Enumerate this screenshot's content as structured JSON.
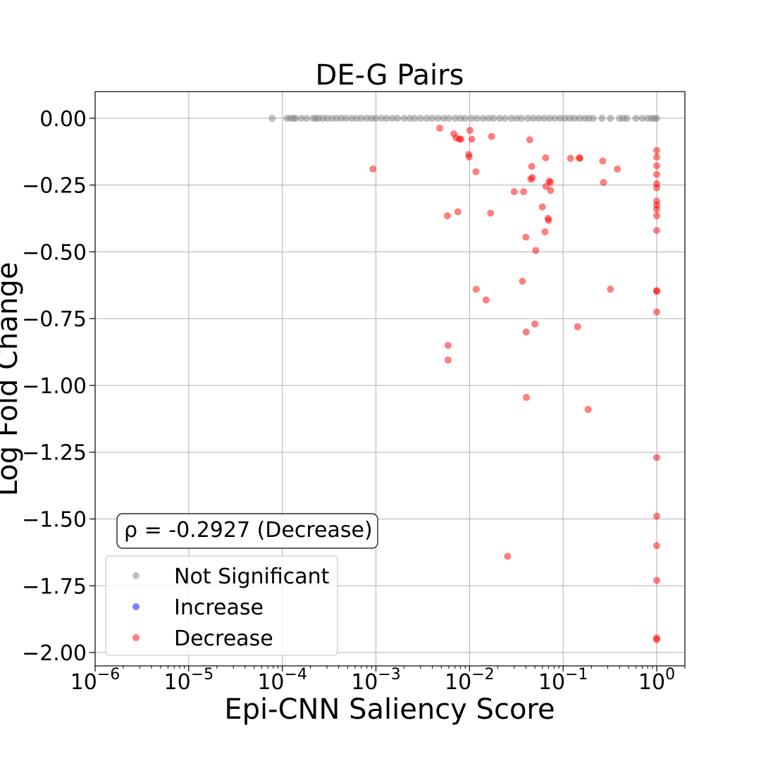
{
  "chart_data": {
    "type": "scatter",
    "title": "DE-G Pairs",
    "xlabel": "Epi-CNN Saliency Score",
    "ylabel": "Log Fold Change",
    "xscale": "log",
    "xlim": [
      1e-06,
      2
    ],
    "ylim": [
      -2.05,
      0.1
    ],
    "grid": true,
    "legend_position": "lower-left",
    "xticks": [
      {
        "value": 1e-06,
        "base": "10",
        "exp": "−6"
      },
      {
        "value": 1e-05,
        "base": "10",
        "exp": "−5"
      },
      {
        "value": 0.0001,
        "base": "10",
        "exp": "−4"
      },
      {
        "value": 0.001,
        "base": "10",
        "exp": "−3"
      },
      {
        "value": 0.01,
        "base": "10",
        "exp": "−2"
      },
      {
        "value": 0.1,
        "base": "10",
        "exp": "−1"
      },
      {
        "value": 1,
        "base": "10",
        "exp": "0"
      }
    ],
    "yticks": [
      {
        "value": 0,
        "label": "0.00"
      },
      {
        "value": -0.25,
        "label": "−0.25"
      },
      {
        "value": -0.5,
        "label": "−0.50"
      },
      {
        "value": -0.75,
        "label": "−0.75"
      },
      {
        "value": -1.0,
        "label": "−1.00"
      },
      {
        "value": -1.25,
        "label": "−1.25"
      },
      {
        "value": -1.5,
        "label": "−1.50"
      },
      {
        "value": -1.75,
        "label": "−1.75"
      },
      {
        "value": -2.0,
        "label": "−2.00"
      }
    ],
    "annotation": "ρ = -0.2927 (Decrease)",
    "series": [
      {
        "name": "Not Significant",
        "color": "#808080",
        "points": [
          [
            7.8e-05,
            0
          ],
          [
            0.000112,
            0
          ],
          [
            0.000122,
            0
          ],
          [
            0.000132,
            0
          ],
          [
            0.000138,
            0
          ],
          [
            0.00016,
            0
          ],
          [
            0.000182,
            0
          ],
          [
            0.000214,
            0
          ],
          [
            0.000228,
            0
          ],
          [
            0.000245,
            0
          ],
          [
            0.00027,
            0
          ],
          [
            0.0003,
            0
          ],
          [
            0.00034,
            0
          ],
          [
            0.00038,
            0
          ],
          [
            0.00043,
            0
          ],
          [
            0.00048,
            0
          ],
          [
            0.00055,
            0
          ],
          [
            0.00062,
            0
          ],
          [
            0.0007,
            0
          ],
          [
            0.0008,
            0
          ],
          [
            0.0009,
            0
          ],
          [
            0.001,
            0
          ],
          [
            0.00115,
            0
          ],
          [
            0.0013,
            0
          ],
          [
            0.0015,
            0
          ],
          [
            0.0017,
            0
          ],
          [
            0.002,
            0
          ],
          [
            0.0023,
            0
          ],
          [
            0.0026,
            0
          ],
          [
            0.003,
            0
          ],
          [
            0.0035,
            0
          ],
          [
            0.004,
            0
          ],
          [
            0.0046,
            0
          ],
          [
            0.0053,
            0
          ],
          [
            0.006,
            0
          ],
          [
            0.007,
            0
          ],
          [
            0.008,
            0
          ],
          [
            0.009,
            0
          ],
          [
            0.0105,
            0
          ],
          [
            0.012,
            0
          ],
          [
            0.014,
            0
          ],
          [
            0.016,
            0
          ],
          [
            0.018,
            0
          ],
          [
            0.021,
            0
          ],
          [
            0.024,
            0
          ],
          [
            0.028,
            0
          ],
          [
            0.032,
            0
          ],
          [
            0.036,
            0
          ],
          [
            0.042,
            0
          ],
          [
            0.048,
            0
          ],
          [
            0.055,
            0
          ],
          [
            0.063,
            0
          ],
          [
            0.072,
            0
          ],
          [
            0.082,
            0
          ],
          [
            0.093,
            0
          ],
          [
            0.105,
            0
          ],
          [
            0.118,
            0
          ],
          [
            0.132,
            0
          ],
          [
            0.15,
            0
          ],
          [
            0.17,
            0
          ],
          [
            0.19,
            0
          ],
          [
            0.21,
            0
          ],
          [
            0.26,
            0
          ],
          [
            0.32,
            0
          ],
          [
            0.4,
            0
          ],
          [
            0.44,
            0
          ],
          [
            0.48,
            0
          ],
          [
            0.6,
            0
          ],
          [
            0.7,
            0
          ],
          [
            0.8,
            0
          ],
          [
            0.88,
            0
          ],
          [
            0.95,
            0
          ],
          [
            1.0,
            0
          ]
        ]
      },
      {
        "name": "Increase",
        "color": "#0000ff",
        "points": []
      },
      {
        "name": "Decrease",
        "color": "#ff0000",
        "points": [
          [
            0.00093,
            -0.19
          ],
          [
            0.0048,
            -0.037
          ],
          [
            0.0058,
            -0.365
          ],
          [
            0.0059,
            -0.85
          ],
          [
            0.0059,
            -0.905
          ],
          [
            0.0068,
            -0.058
          ],
          [
            0.0072,
            -0.073
          ],
          [
            0.0075,
            -0.35
          ],
          [
            0.0078,
            -0.078
          ],
          [
            0.0081,
            -0.078
          ],
          [
            0.0098,
            -0.135
          ],
          [
            0.0099,
            -0.145
          ],
          [
            0.0101,
            -0.045
          ],
          [
            0.0106,
            -0.078
          ],
          [
            0.0117,
            -0.2
          ],
          [
            0.0118,
            -0.64
          ],
          [
            0.015,
            -0.68
          ],
          [
            0.0168,
            -0.355
          ],
          [
            0.0172,
            -0.068
          ],
          [
            0.0255,
            -1.64
          ],
          [
            0.03,
            -0.275
          ],
          [
            0.0368,
            -0.61
          ],
          [
            0.0378,
            -0.275
          ],
          [
            0.04,
            -0.445
          ],
          [
            0.0403,
            -0.8
          ],
          [
            0.0405,
            -1.045
          ],
          [
            0.044,
            -0.08
          ],
          [
            0.0452,
            -0.228
          ],
          [
            0.0462,
            -0.18
          ],
          [
            0.0468,
            -0.222
          ],
          [
            0.05,
            -0.77
          ],
          [
            0.051,
            -0.495
          ],
          [
            0.06,
            -0.332
          ],
          [
            0.064,
            -0.425
          ],
          [
            0.065,
            -0.148
          ],
          [
            0.0655,
            -0.255
          ],
          [
            0.069,
            -0.375
          ],
          [
            0.07,
            -0.382
          ],
          [
            0.071,
            -0.235
          ],
          [
            0.073,
            -0.24
          ],
          [
            0.0735,
            -0.27
          ],
          [
            0.12,
            -0.15
          ],
          [
            0.143,
            -0.78
          ],
          [
            0.148,
            -0.148
          ],
          [
            0.152,
            -0.15
          ],
          [
            0.185,
            -1.09
          ],
          [
            0.265,
            -0.16
          ],
          [
            0.27,
            -0.24
          ],
          [
            0.32,
            -0.64
          ],
          [
            0.38,
            -0.19
          ],
          [
            1.0,
            -0.12
          ],
          [
            1.0,
            -0.145
          ],
          [
            1.0,
            -0.178
          ],
          [
            1.0,
            -0.21
          ],
          [
            1.0,
            -0.245
          ],
          [
            1.0,
            -0.26
          ],
          [
            1.0,
            -0.31
          ],
          [
            1.0,
            -0.325
          ],
          [
            1.0,
            -0.34
          ],
          [
            1.0,
            -0.365
          ],
          [
            1.0,
            -0.42
          ],
          [
            1.0,
            -0.645
          ],
          [
            1.0,
            -0.648
          ],
          [
            1.0,
            -0.725
          ],
          [
            1.0,
            -1.27
          ],
          [
            1.0,
            -1.49
          ],
          [
            1.0,
            -1.6
          ],
          [
            1.0,
            -1.73
          ],
          [
            1.0,
            -1.945
          ],
          [
            1.0,
            -1.952
          ]
        ]
      }
    ]
  }
}
